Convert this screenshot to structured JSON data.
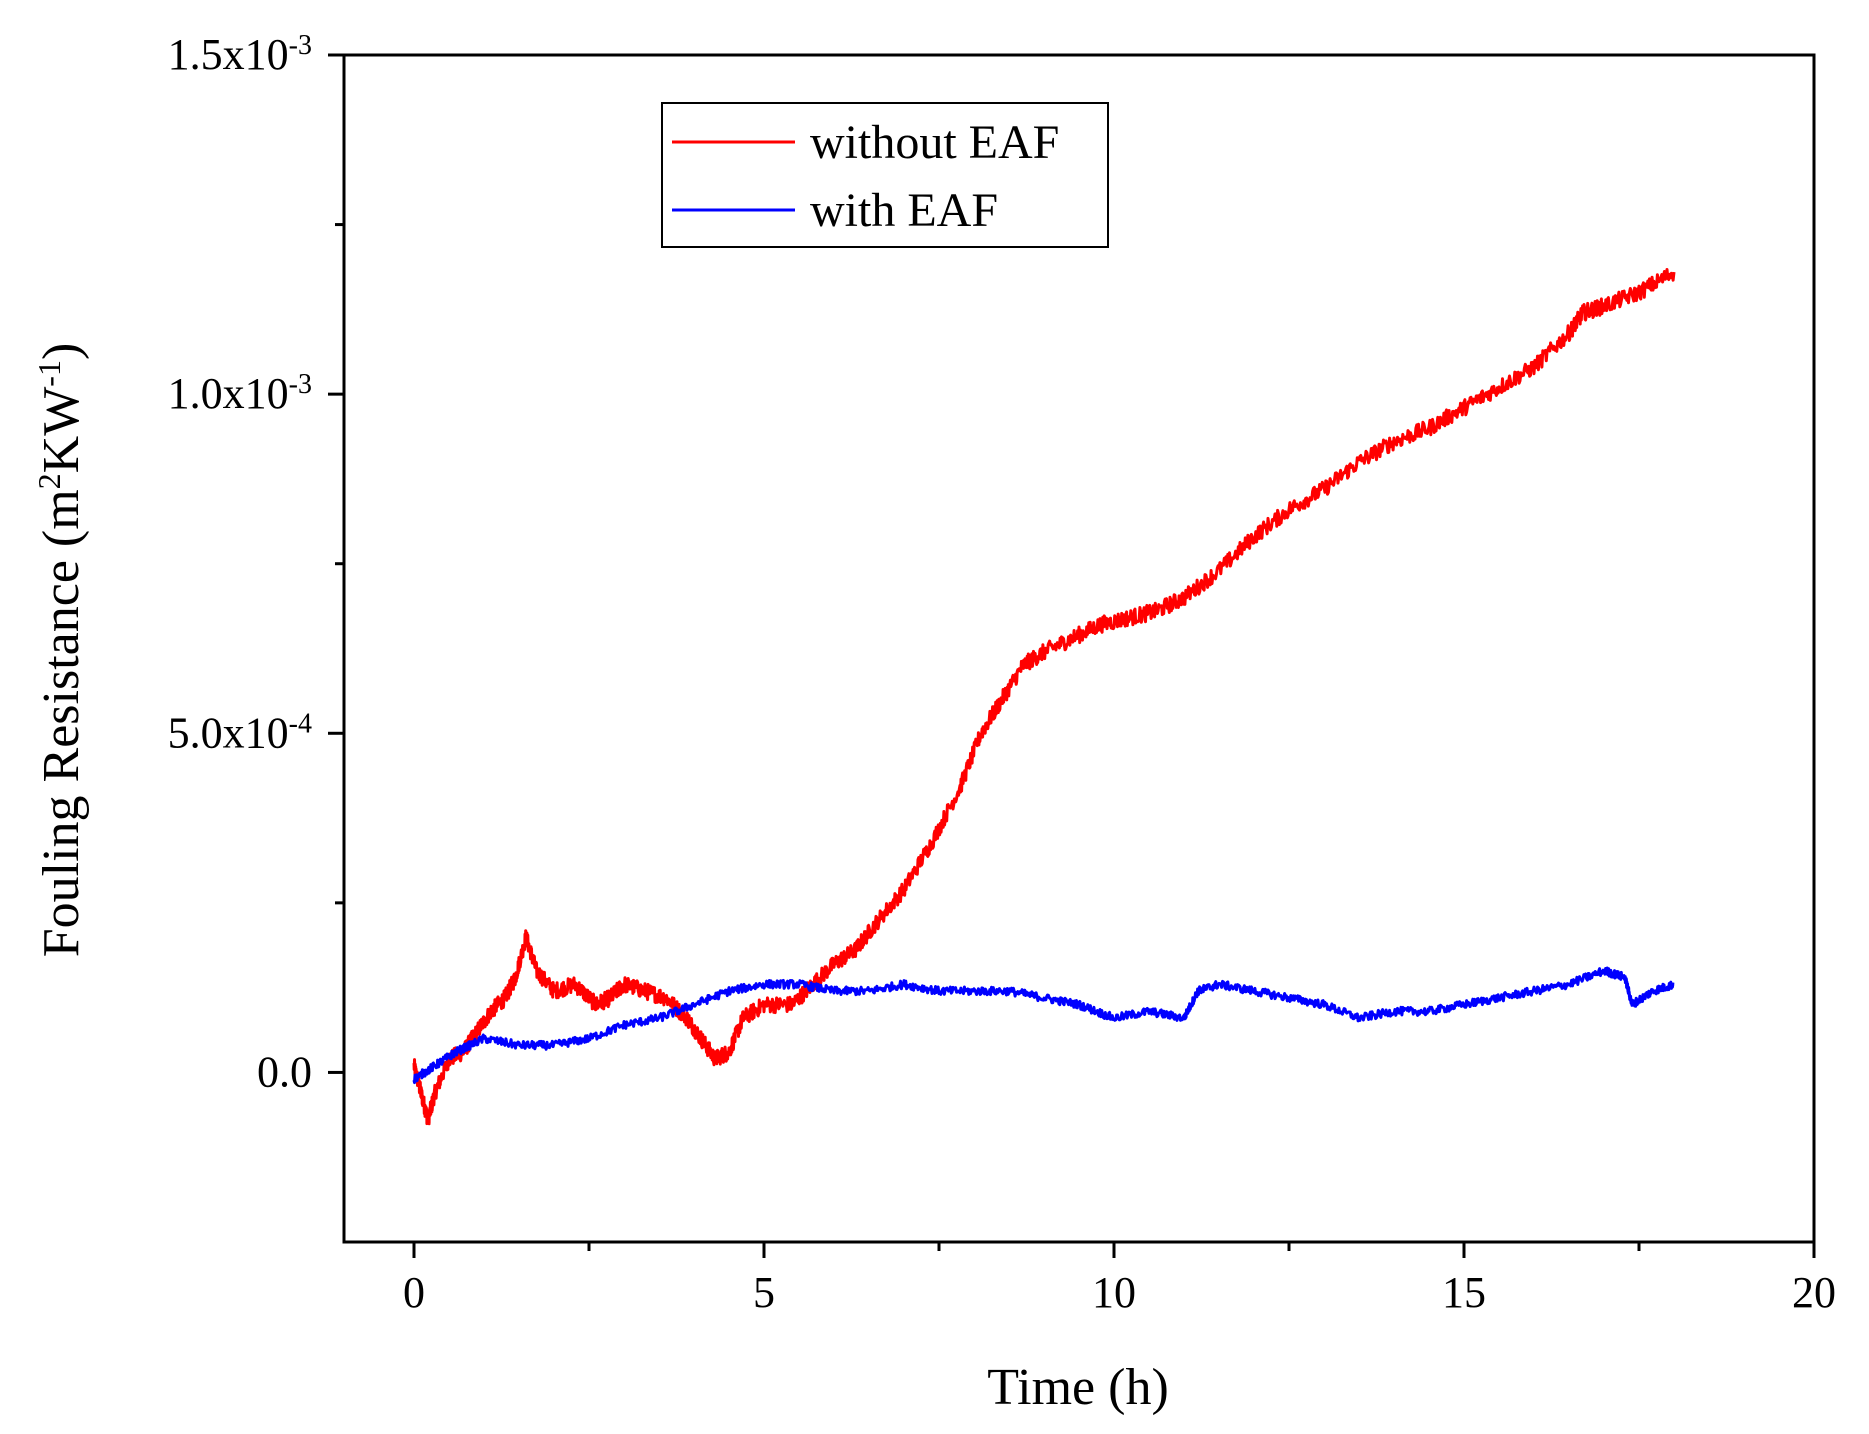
{
  "chart_data": {
    "type": "line",
    "title": "",
    "xlabel": "Time (h)",
    "ylabel": {
      "main": "Fouling Resistance (m",
      "sup1": "2",
      "mid": "KW",
      "sup2": "-1",
      "end": ")"
    },
    "xlim": [
      -1,
      20
    ],
    "ylim": [
      -0.00025,
      0.0015
    ],
    "x_ticks": [
      0,
      5,
      10,
      15,
      20
    ],
    "x_tick_labels": [
      "0",
      "5",
      "10",
      "15",
      "20"
    ],
    "x_minor_ticks": [
      2.5,
      7.5,
      12.5,
      17.5
    ],
    "y_ticks": [
      {
        "value": 0.0,
        "mantissa": "0.0",
        "exponent": ""
      },
      {
        "value": 0.0005,
        "mantissa": "5.0x10",
        "exponent": "-4"
      },
      {
        "value": 0.001,
        "mantissa": "1.0x10",
        "exponent": "-3"
      },
      {
        "value": 0.0015,
        "mantissa": "1.5x10",
        "exponent": "-3"
      }
    ],
    "y_minor_ticks": [
      0.00025,
      0.00075,
      0.00125
    ],
    "legend_position": "top-center",
    "series": [
      {
        "name": "without EAF",
        "color": "#ff0000",
        "points": [
          [
            0,
            1e-05
          ],
          [
            0.1,
            -3e-05
          ],
          [
            0.2,
            -7e-05
          ],
          [
            0.3,
            -3e-05
          ],
          [
            0.5,
            2e-05
          ],
          [
            0.7,
            3e-05
          ],
          [
            0.9,
            6e-05
          ],
          [
            1.1,
            9e-05
          ],
          [
            1.3,
            0.00011
          ],
          [
            1.45,
            0.00014
          ],
          [
            1.6,
            0.0002
          ],
          [
            1.75,
            0.00015
          ],
          [
            2.0,
            0.00012
          ],
          [
            2.3,
            0.00013
          ],
          [
            2.6,
            0.0001
          ],
          [
            2.8,
            0.00011
          ],
          [
            3.0,
            0.00013
          ],
          [
            3.3,
            0.00012
          ],
          [
            3.6,
            0.00011
          ],
          [
            3.9,
            8e-05
          ],
          [
            4.1,
            5e-05
          ],
          [
            4.3,
            2e-05
          ],
          [
            4.5,
            3e-05
          ],
          [
            4.7,
            8e-05
          ],
          [
            5.0,
            0.0001
          ],
          [
            5.4,
            0.0001
          ],
          [
            5.7,
            0.00013
          ],
          [
            6.0,
            0.00016
          ],
          [
            6.3,
            0.00018
          ],
          [
            6.6,
            0.00022
          ],
          [
            7.0,
            0.00027
          ],
          [
            7.4,
            0.00034
          ],
          [
            7.8,
            0.00042
          ],
          [
            8.1,
            0.0005
          ],
          [
            8.4,
            0.00055
          ],
          [
            8.7,
            0.0006
          ],
          [
            9.0,
            0.00062
          ],
          [
            9.4,
            0.00064
          ],
          [
            9.8,
            0.00066
          ],
          [
            10.2,
            0.00067
          ],
          [
            10.6,
            0.00068
          ],
          [
            11.0,
            0.0007
          ],
          [
            11.5,
            0.00074
          ],
          [
            12.0,
            0.00079
          ],
          [
            12.5,
            0.00083
          ],
          [
            13.0,
            0.00086
          ],
          [
            13.5,
            0.0009
          ],
          [
            14.0,
            0.00093
          ],
          [
            14.5,
            0.00095
          ],
          [
            15.0,
            0.00098
          ],
          [
            15.5,
            0.00101
          ],
          [
            16.0,
            0.00104
          ],
          [
            16.5,
            0.00109
          ],
          [
            16.7,
            0.00112
          ],
          [
            17.0,
            0.00113
          ],
          [
            17.5,
            0.00115
          ],
          [
            18.0,
            0.00118
          ]
        ]
      },
      {
        "name": "with EAF",
        "color": "#0000ff",
        "points": [
          [
            0,
            -1e-05
          ],
          [
            0.3,
            1e-05
          ],
          [
            0.6,
            3e-05
          ],
          [
            1.0,
            5e-05
          ],
          [
            1.5,
            4e-05
          ],
          [
            2.0,
            4e-05
          ],
          [
            2.5,
            5e-05
          ],
          [
            3.0,
            7e-05
          ],
          [
            3.5,
            8e-05
          ],
          [
            4.0,
            0.0001
          ],
          [
            4.5,
            0.00012
          ],
          [
            5.0,
            0.00013
          ],
          [
            5.5,
            0.00013
          ],
          [
            6.0,
            0.00012
          ],
          [
            6.5,
            0.00012
          ],
          [
            7.0,
            0.00013
          ],
          [
            7.5,
            0.00012
          ],
          [
            8.0,
            0.00012
          ],
          [
            8.5,
            0.00012
          ],
          [
            9.0,
            0.00011
          ],
          [
            9.5,
            0.0001
          ],
          [
            10.0,
            8e-05
          ],
          [
            10.5,
            9e-05
          ],
          [
            11.0,
            8e-05
          ],
          [
            11.2,
            0.00012
          ],
          [
            11.5,
            0.00013
          ],
          [
            12.0,
            0.00012
          ],
          [
            12.5,
            0.00011
          ],
          [
            13.0,
            0.0001
          ],
          [
            13.5,
            8e-05
          ],
          [
            14.0,
            9e-05
          ],
          [
            14.5,
            9e-05
          ],
          [
            15.0,
            0.0001
          ],
          [
            15.5,
            0.00011
          ],
          [
            16.0,
            0.00012
          ],
          [
            16.5,
            0.00013
          ],
          [
            17.0,
            0.00015
          ],
          [
            17.3,
            0.00014
          ],
          [
            17.4,
            0.0001
          ],
          [
            17.7,
            0.00012
          ],
          [
            18.0,
            0.00013
          ]
        ]
      }
    ]
  }
}
